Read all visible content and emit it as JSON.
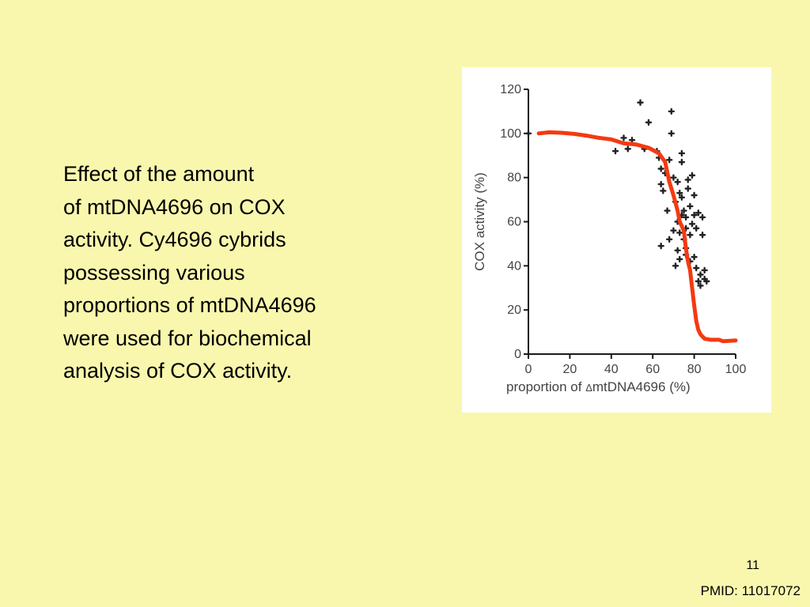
{
  "slide": {
    "text_lines": [
      "Effect of the amount",
      "of mtDNA4696 on COX",
      "activity. Cy4696 cybrids",
      "possessing various",
      "proportions of mtDNA4696",
      "were used for biochemical",
      "analysis of COX activity."
    ],
    "page_number": "11",
    "pmid": "PMID: 11017072",
    "background_color": "#f9f7ad"
  },
  "chart_data": {
    "type": "scatter",
    "ylabel": "COX activity (%)",
    "xlabel_prefix": "proportion of ",
    "xlabel_symbol": "Δ",
    "xlabel_suffix": "mtDNA4696 (%)",
    "xlim": [
      0,
      100
    ],
    "ylim": [
      0,
      120
    ],
    "xticks": [
      0,
      20,
      40,
      60,
      80,
      100
    ],
    "yticks": [
      0,
      20,
      40,
      60,
      80,
      100,
      120
    ],
    "grid": false,
    "point_color": "#222222",
    "axis_color": "#1a1a1a",
    "label_color": "#444444",
    "series": [
      {
        "points": [
          [
            0,
            100
          ],
          [
            42,
            92
          ],
          [
            46,
            98
          ],
          [
            48,
            93
          ],
          [
            50,
            97
          ],
          [
            54,
            114
          ],
          [
            56,
            93
          ],
          [
            58,
            105
          ],
          [
            62,
            92
          ],
          [
            63,
            89
          ],
          [
            64,
            77
          ],
          [
            64,
            84
          ],
          [
            64,
            49
          ],
          [
            65,
            74
          ],
          [
            66,
            82
          ],
          [
            67,
            65
          ],
          [
            68,
            52
          ],
          [
            68,
            88
          ],
          [
            69,
            110
          ],
          [
            69,
            100
          ],
          [
            70,
            56
          ],
          [
            70,
            80
          ],
          [
            71,
            40
          ],
          [
            71,
            69
          ],
          [
            72,
            47
          ],
          [
            72,
            60
          ],
          [
            72,
            78
          ],
          [
            73,
            73
          ],
          [
            73,
            43
          ],
          [
            73,
            55
          ],
          [
            74,
            87
          ],
          [
            74,
            91
          ],
          [
            74,
            71
          ],
          [
            74,
            63
          ],
          [
            75,
            65
          ],
          [
            75,
            52
          ],
          [
            76,
            48
          ],
          [
            76,
            45
          ],
          [
            76,
            57
          ],
          [
            76,
            62
          ],
          [
            77,
            75
          ],
          [
            77,
            79
          ],
          [
            78,
            54
          ],
          [
            78,
            42
          ],
          [
            78,
            67
          ],
          [
            79,
            59
          ],
          [
            79,
            81
          ],
          [
            80,
            44
          ],
          [
            80,
            72
          ],
          [
            80,
            63
          ],
          [
            81,
            57
          ],
          [
            81,
            39
          ],
          [
            82,
            64
          ],
          [
            82,
            33
          ],
          [
            83,
            31
          ],
          [
            83,
            36
          ],
          [
            84,
            62
          ],
          [
            84,
            54
          ],
          [
            85,
            38
          ],
          [
            85,
            34
          ],
          [
            86,
            33
          ]
        ]
      },
      {
        "color": "#f43a12",
        "points": [
          [
            5,
            100
          ],
          [
            10,
            100.5
          ],
          [
            16,
            100.3
          ],
          [
            22,
            99.8
          ],
          [
            28,
            99
          ],
          [
            34,
            98
          ],
          [
            40,
            97.3
          ],
          [
            46,
            95.5
          ],
          [
            52,
            95
          ],
          [
            58,
            93.5
          ],
          [
            63,
            91
          ],
          [
            66,
            87
          ],
          [
            68,
            78
          ],
          [
            70,
            72
          ],
          [
            72,
            65
          ],
          [
            73,
            60
          ],
          [
            75,
            56
          ],
          [
            76,
            48
          ],
          [
            77,
            42
          ],
          [
            78,
            38
          ],
          [
            79,
            30
          ],
          [
            80,
            22
          ],
          [
            81,
            15
          ],
          [
            82,
            11
          ],
          [
            83,
            9
          ],
          [
            85,
            7
          ],
          [
            88,
            6.5
          ],
          [
            92,
            6.5
          ],
          [
            94,
            5.8
          ],
          [
            97,
            6
          ],
          [
            100,
            6.2
          ]
        ]
      }
    ]
  }
}
